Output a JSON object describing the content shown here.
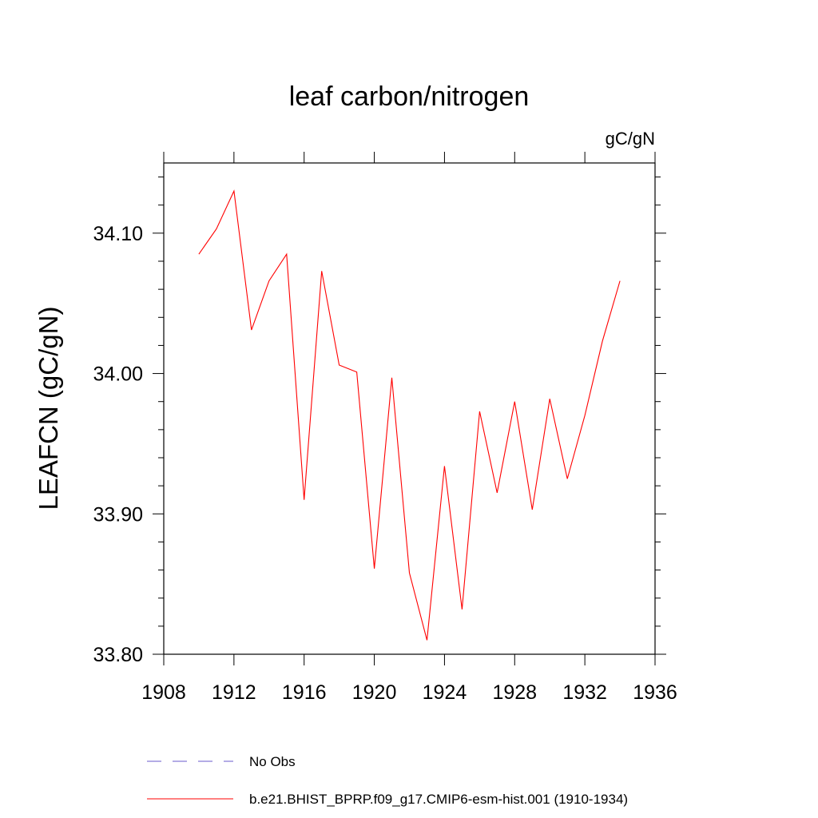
{
  "chart_data": {
    "type": "line",
    "title": "leaf carbon/nitrogen",
    "units_label": "gC/gN",
    "xlabel": "",
    "ylabel": "LEAFCN  (gC/gN)",
    "xlim": [
      1908,
      1936
    ],
    "ylim": [
      33.8,
      34.15
    ],
    "xticks": [
      1908,
      1912,
      1916,
      1920,
      1924,
      1928,
      1932,
      1936
    ],
    "yticks": [
      33.8,
      33.9,
      34.0,
      34.1
    ],
    "ytick_labels": [
      "33.80",
      "33.90",
      "34.00",
      "34.10"
    ],
    "series": [
      {
        "name": "b.e21.BHIST_BPRP.f09_g17.CMIP6-esm-hist.001 (1910-1934)",
        "color": "#ff0000",
        "style": "solid",
        "x": [
          1910,
          1911,
          1912,
          1913,
          1914,
          1915,
          1916,
          1917,
          1918,
          1919,
          1920,
          1921,
          1922,
          1923,
          1924,
          1925,
          1926,
          1927,
          1928,
          1929,
          1930,
          1931,
          1932,
          1933,
          1934
        ],
        "values": [
          34.085,
          34.103,
          34.13,
          34.031,
          34.066,
          34.085,
          33.91,
          34.073,
          34.006,
          34.001,
          33.861,
          33.997,
          33.858,
          33.81,
          33.934,
          33.832,
          33.973,
          33.915,
          33.98,
          33.903,
          33.982,
          33.925,
          33.97,
          34.023,
          34.066
        ]
      }
    ],
    "legend": [
      {
        "label": "No Obs",
        "color": "#6a5acd",
        "style": "dashed"
      },
      {
        "label": "b.e21.BHIST_BPRP.f09_g17.CMIP6-esm-hist.001 (1910-1934)",
        "color": "#ff0000",
        "style": "solid"
      }
    ]
  }
}
